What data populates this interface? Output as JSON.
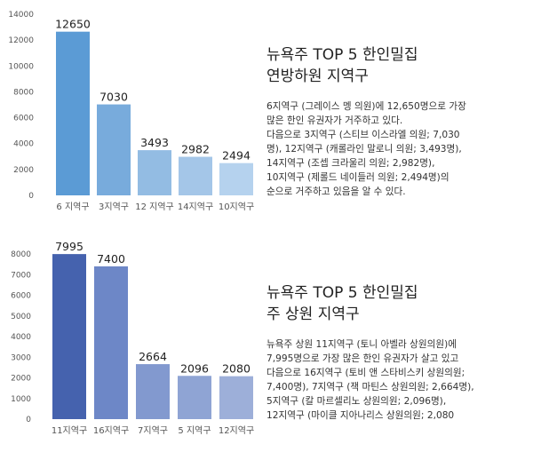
{
  "chart_data": [
    {
      "type": "bar",
      "categories": [
        "6 지역구",
        "3지역구",
        "12 지역구",
        "14지역구",
        "10지역구"
      ],
      "values": [
        12650,
        7030,
        3493,
        2982,
        2494
      ],
      "ylim": [
        0,
        14000
      ],
      "yticks": [
        0,
        2000,
        4000,
        6000,
        8000,
        10000,
        12000,
        14000
      ],
      "grid": false,
      "colors": [
        "#5b9bd5",
        "#78abdc",
        "#93bce3",
        "#a4c6e8",
        "#b5d2ee"
      ]
    },
    {
      "type": "bar",
      "categories": [
        "11지역구",
        "16지역구",
        "7지역구",
        "5 지역구",
        "12지역구"
      ],
      "values": [
        7995,
        7400,
        2664,
        2096,
        2080
      ],
      "ylim": [
        0,
        8000
      ],
      "yticks": [
        0,
        1000,
        2000,
        3000,
        4000,
        5000,
        6000,
        7000,
        8000
      ],
      "grid": false,
      "colors": [
        "#4562ae",
        "#6d87c7",
        "#8299cf",
        "#8fa4d4",
        "#9dafd9"
      ]
    }
  ],
  "panels": [
    {
      "title_lines": [
        "뉴욕주 TOP 5 한인밀집",
        "연방하원 지역구"
      ],
      "body_lines": [
        "6지역구 (그레이스 멩 의원)에 12,650명으로 가장",
        "많은 한인 유권자가 거주하고 있다.",
        "다음으로 3지역구 (스티브 이스라엘 의원; 7,030",
        "명), 12지역구 (캐롤라인 말로니 의원; 3,493명),",
        "14지역구 (조셉 크라울리 의원; 2,982명),",
        "10지역구 (제롤드 네이들러 의원; 2,494명)의",
        "순으로 거주하고 있음을 알 수 있다."
      ]
    },
    {
      "title_lines": [
        "뉴욕주 TOP 5 한인밀집",
        "주 상원 지역구"
      ],
      "body_lines": [
        "뉴욕주 상원 11지역구 (토니 아벨라 상원의원)에",
        "7,995명으로 가장 많은 한인 유권자가 살고 있고",
        "다음으로 16지역구 (토비 앤 스타비스키 상원의원;",
        "7,400명), 7지역구 (잭 마틴스 상원의원; 2,664명),",
        "5지역구 (칼 마르셀리노 상원의원; 2,096명),",
        "12지역구 (마이클 지아나리스 상원의원; 2,080"
      ]
    }
  ]
}
